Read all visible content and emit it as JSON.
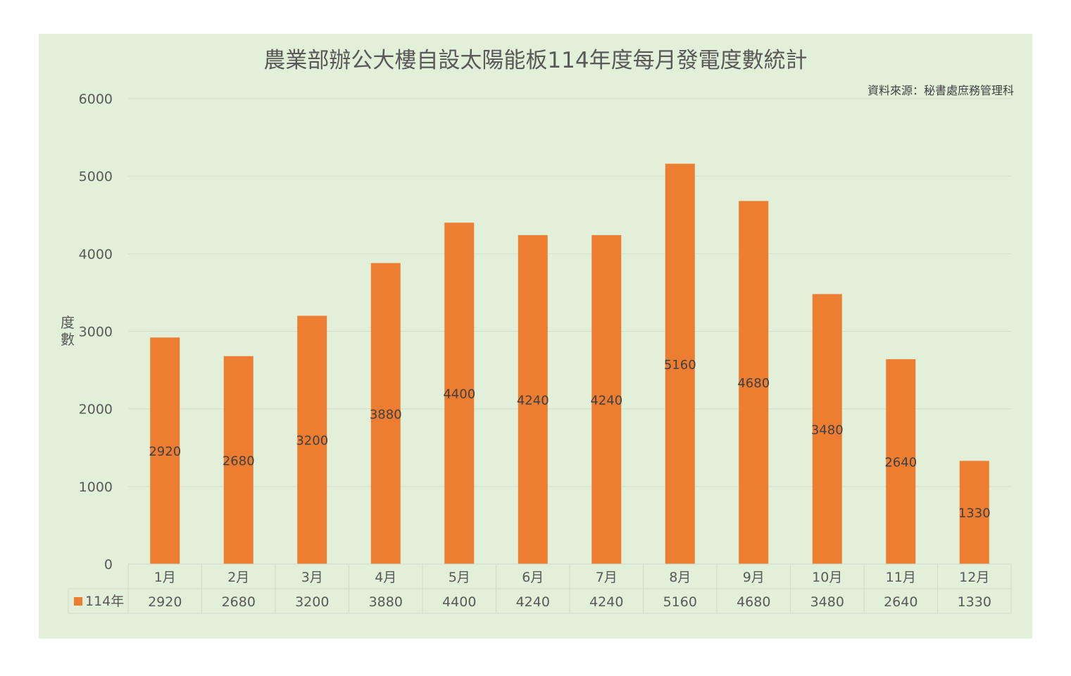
{
  "chart_data": {
    "type": "bar",
    "title": "農業部辦公大樓自設太陽能板114年度每月發電度數統計",
    "source_note": "資料來源：秘書處庶務管理科",
    "ylabel": "度數",
    "xlabel": "",
    "categories": [
      "1月",
      "2月",
      "3月",
      "4月",
      "5月",
      "6月",
      "7月",
      "8月",
      "9月",
      "10月",
      "11月",
      "12月"
    ],
    "series": [
      {
        "name": "114年",
        "values": [
          2920,
          2680,
          3200,
          3880,
          4400,
          4240,
          4240,
          5160,
          4680,
          3480,
          2640,
          1330
        ]
      }
    ],
    "ylim": [
      0,
      6000
    ],
    "yticks": [
      0,
      1000,
      2000,
      3000,
      4000,
      5000,
      6000
    ],
    "grid": true,
    "legend": "data-table",
    "data_labels": "center",
    "colors": {
      "bar": "#ed7d31",
      "background": "#e2efd9",
      "grid": "#d5dfd0"
    }
  }
}
